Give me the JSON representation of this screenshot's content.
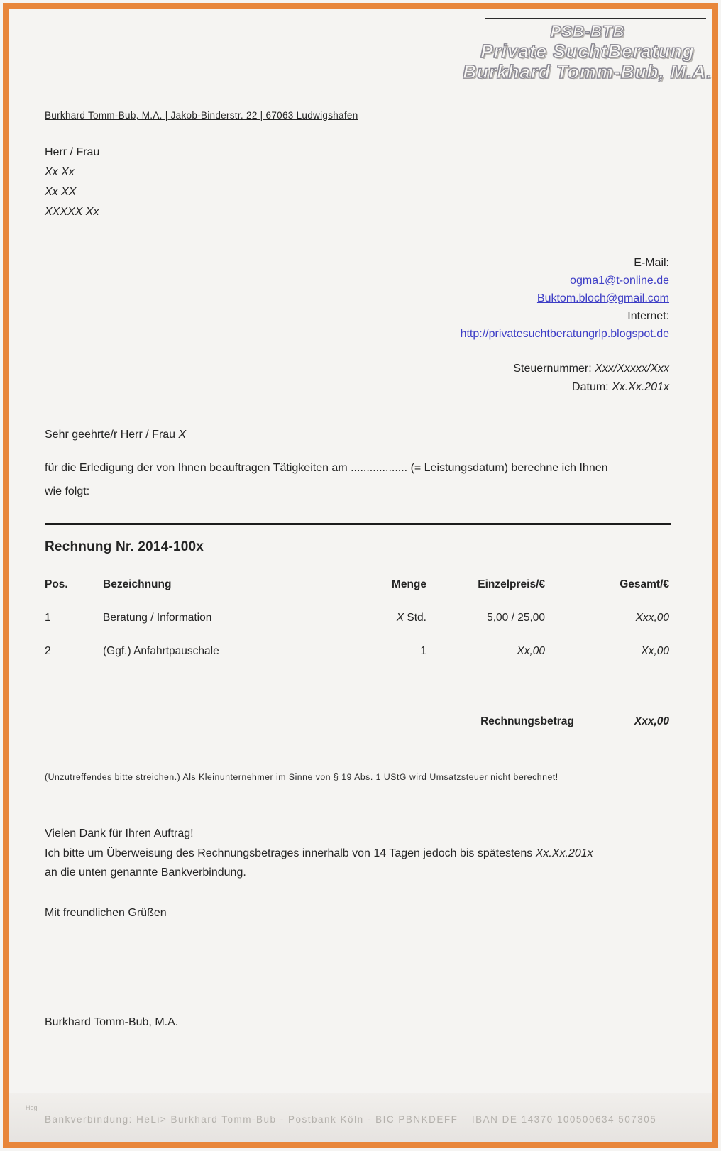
{
  "page": {
    "border_color": "#e8863a",
    "background_color": "#f5f4f2",
    "link_color": "#3d3dc6"
  },
  "logo": {
    "line1": "PSB-BTB",
    "line2": "Private SuchtBeratung",
    "line3": "Burkhard Tomm-Bub, M.A."
  },
  "sender_line": "Burkhard Tomm-Bub, M.A. | Jakob-Binderstr. 22 | 67063 Ludwigshafen",
  "recipient": {
    "salutation": "Herr / Frau",
    "line1": "Xx Xx",
    "line2": "Xx XX",
    "line3": "XXXXX Xx"
  },
  "contact": {
    "email_label": "E-Mail:",
    "email1": "ogma1@t-online.de",
    "email2": "Buktom.bloch@gmail.com",
    "internet_label": "Internet:",
    "website": "http://privatesuchtberatungrlp.blogspot.de"
  },
  "meta": {
    "tax_label": "Steuernummer: ",
    "tax_value": "Xxx/Xxxxx/Xxx",
    "date_label": "Datum: ",
    "date_value": "Xx.Xx.201x"
  },
  "letter": {
    "salutation_prefix": "Sehr geehrte/r Herr / Frau ",
    "salutation_x": "X",
    "intro_line1": "für die Erledigung der von Ihnen beauftragen Tätigkeiten am .................. (= Leistungsdatum) berechne ich Ihnen",
    "intro_line2": "wie folgt:"
  },
  "invoice": {
    "title": "Rechnung Nr. 2014-100x",
    "columns": [
      "Pos.",
      "Bezeichnung",
      "Menge",
      "Einzelpreis/€",
      "Gesamt/€"
    ],
    "rows": [
      {
        "pos": "1",
        "desc": "Beratung / Information",
        "qty_em": "X",
        "qty_rest": " Std.",
        "unit": "5,00 / 25,00",
        "total": "Xxx,00"
      },
      {
        "pos": "2",
        "desc": "(Ggf.) Anfahrtpauschale",
        "qty_em": "",
        "qty_rest": "1",
        "unit": "Xx,00",
        "total": "Xx,00"
      }
    ],
    "total_label": "Rechnungsbetrag",
    "total_value": "Xxx,00"
  },
  "small_print": "(Unzutreffendes bitte streichen.) Als Kleinunternehmer im Sinne von § 19 Abs. 1 UStG wird Umsatzsteuer nicht berechnet!",
  "closing": {
    "thanks": "Vielen Dank für Ihren Auftrag!",
    "payment_prefix": "Ich bitte um Überweisung des Rechnungsbetrages innerhalb von 14 Tagen jedoch bis spätestens ",
    "payment_date": "Xx.Xx.201x",
    "payment_line2": "an die unten genannte Bankverbindung.",
    "regards": "Mit freundlichen Grüßen",
    "signature": "Burkhard Tomm-Bub, M.A."
  },
  "footer": {
    "side_note": "Hog",
    "bank_line": "Bankverbindung:   HeLi> Burkhard Tomm-Bub  - Postbank Köln  - BIC PBNKDEFF –  IBAN  DE 14370 100500634 507305"
  }
}
